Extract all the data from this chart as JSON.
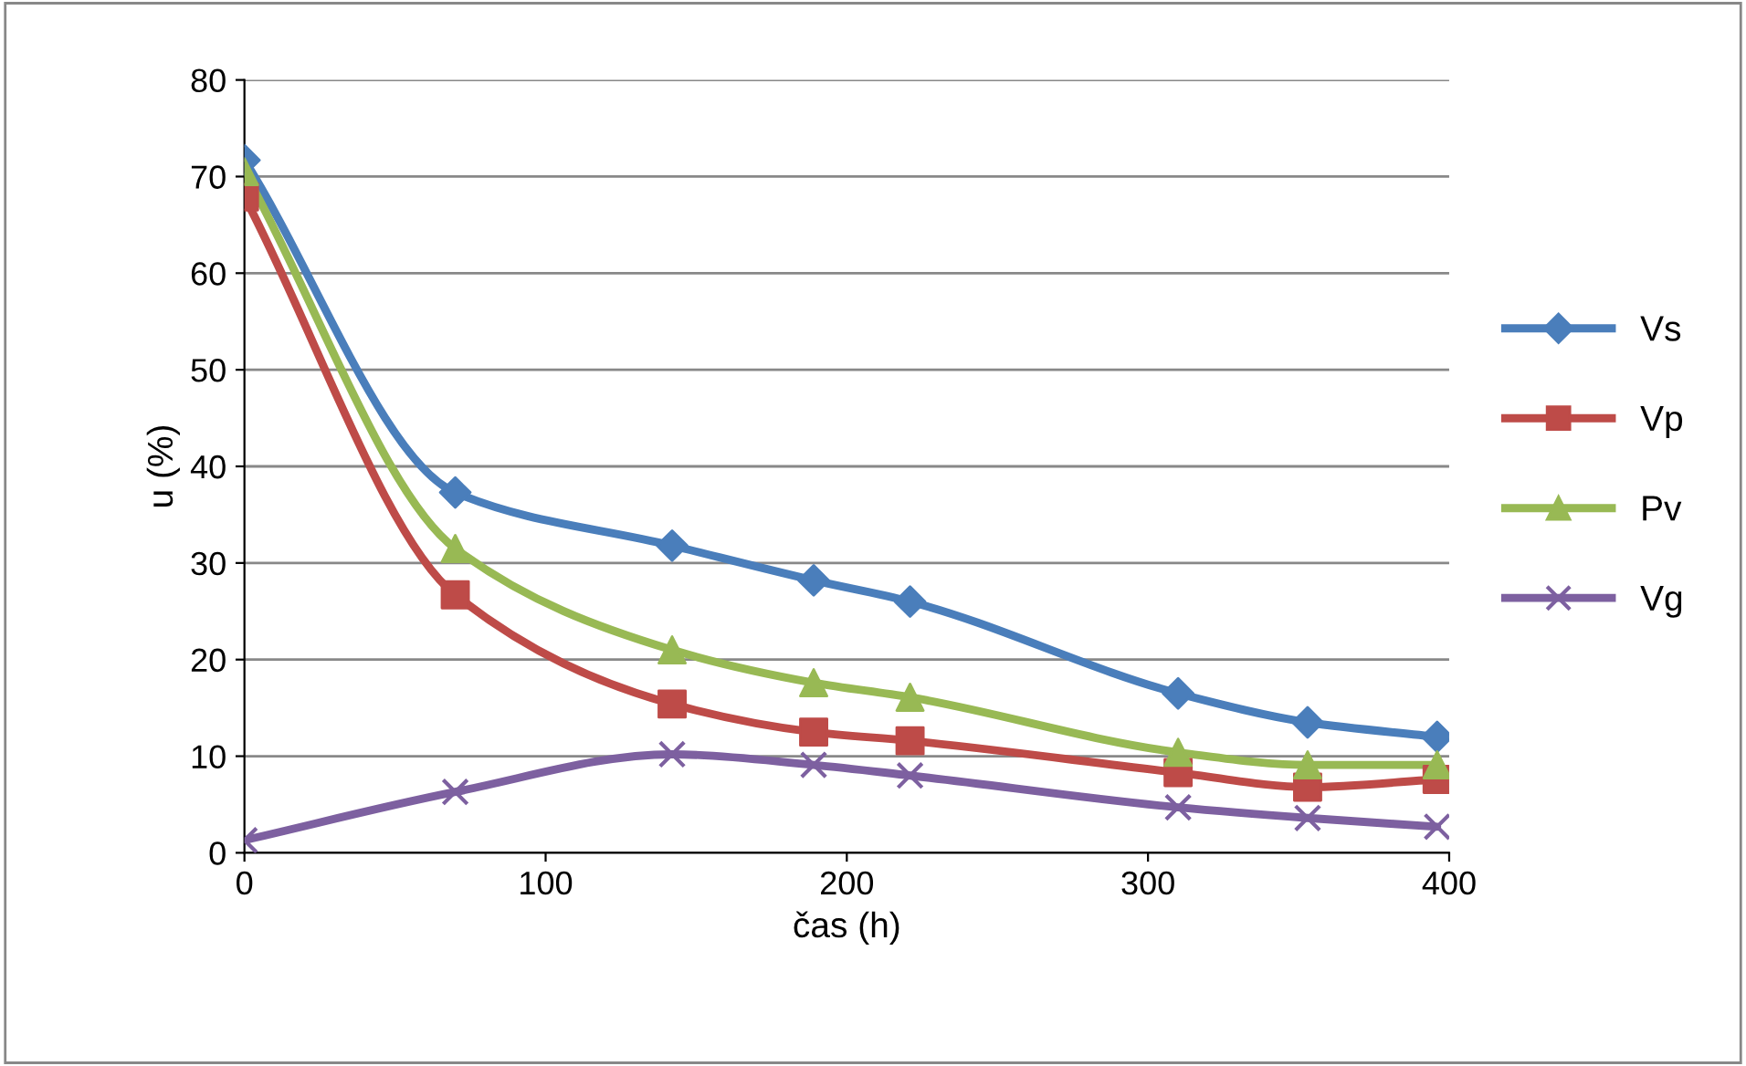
{
  "chart_data": {
    "type": "line",
    "xlabel": "čas (h)",
    "ylabel": "u (%)",
    "x": [
      0,
      70,
      142,
      189,
      221,
      310,
      353,
      396
    ],
    "xlim": [
      0,
      400
    ],
    "xticks": [
      0,
      100,
      200,
      300,
      400
    ],
    "ylim": [
      0,
      80
    ],
    "yticks": [
      0,
      10,
      20,
      30,
      40,
      50,
      60,
      70,
      80
    ],
    "grid": "y",
    "legend": "right",
    "line_style": "solid",
    "series": [
      {
        "name": "Vs",
        "color": "#4a7ebb",
        "marker": "diamond",
        "values": [
          71.7,
          37.3,
          31.8,
          28.2,
          26.0,
          16.5,
          13.5,
          12.0
        ]
      },
      {
        "name": "Vp",
        "color": "#be4b48",
        "marker": "square",
        "values": [
          67.9,
          26.7,
          15.4,
          12.5,
          11.6,
          8.3,
          6.8,
          7.6
        ]
      },
      {
        "name": "Pv",
        "color": "#98b954",
        "marker": "triangle",
        "values": [
          70.5,
          31.5,
          21.0,
          17.6,
          16.1,
          10.4,
          9.1,
          9.1
        ]
      },
      {
        "name": "Vg",
        "color": "#7d60a0",
        "marker": "cross",
        "values": [
          1.3,
          6.3,
          10.2,
          9.1,
          8.0,
          4.7,
          3.6,
          2.7
        ]
      }
    ]
  }
}
